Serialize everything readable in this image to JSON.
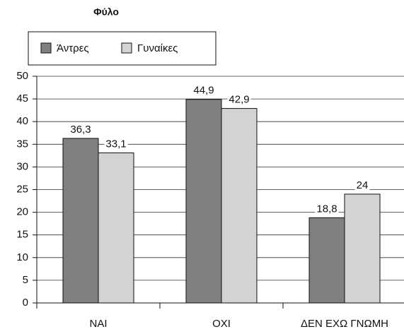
{
  "chart_data": {
    "type": "bar",
    "title": "Φύλο",
    "categories": [
      "NAI",
      "OXI",
      "ΔΕΝ ΕΧΩ ΓΝΩΜΗ"
    ],
    "series": [
      {
        "name": "Άντρες",
        "color": "#808080",
        "values": [
          36.3,
          44.9,
          18.8
        ],
        "value_labels": [
          "36,3",
          "44,9",
          "18,8"
        ]
      },
      {
        "name": "Γυναίκες",
        "color": "#d3d3d3",
        "values": [
          33.1,
          42.9,
          24
        ],
        "value_labels": [
          "33,1",
          "42,9",
          "24"
        ]
      }
    ],
    "ylim": [
      0,
      50
    ],
    "yticks": [
      0,
      5,
      10,
      15,
      20,
      25,
      30,
      35,
      40,
      45,
      50
    ],
    "grid": true,
    "legend": "top-left"
  }
}
